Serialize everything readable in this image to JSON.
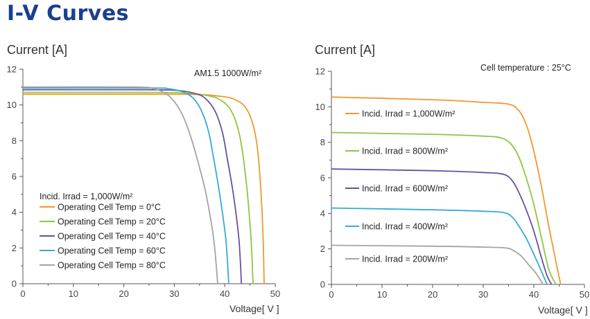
{
  "title": "I-V Curves",
  "colors": [
    "#f0982e",
    "#8cc63f",
    "#6650a0",
    "#37a9d6",
    "#a3a3a3"
  ],
  "chart_data": [
    {
      "type": "line",
      "ylabel": "Current [A]",
      "xlabel": "Voltage[ V ]",
      "annotation": "AM1.5  1000W/m²",
      "legend_title": "Incid. Irrad = 1,000W/m²",
      "legend_position": "lower-left",
      "xlim": [
        0,
        50
      ],
      "ylim": [
        0,
        12
      ],
      "xticks": [
        0,
        10,
        20,
        30,
        40,
        50
      ],
      "yticks": [
        0,
        2,
        4,
        6,
        8,
        10,
        12
      ],
      "grid": false,
      "series": [
        {
          "name": "Operating Cell Temp = 0°C",
          "color": "#f0982e",
          "points": [
            [
              0,
              10.6
            ],
            [
              25,
              10.6
            ],
            [
              35,
              10.58
            ],
            [
              40,
              10.45
            ],
            [
              42,
              10.3
            ],
            [
              44,
              9.9
            ],
            [
              45.5,
              9.0
            ],
            [
              46.5,
              7.5
            ],
            [
              47.2,
              5.0
            ],
            [
              47.6,
              2.5
            ],
            [
              47.8,
              0
            ]
          ]
        },
        {
          "name": "Operating Cell Temp = 20°C",
          "color": "#8cc63f",
          "points": [
            [
              0,
              10.7
            ],
            [
              25,
              10.7
            ],
            [
              33,
              10.65
            ],
            [
              37,
              10.5
            ],
            [
              39,
              10.3
            ],
            [
              41,
              9.8
            ],
            [
              42.5,
              8.8
            ],
            [
              43.5,
              7.4
            ],
            [
              44.5,
              5.0
            ],
            [
              45.2,
              2.5
            ],
            [
              45.6,
              0
            ]
          ]
        },
        {
          "name": "Operating Cell Temp = 40°C",
          "color": "#6650a0",
          "points": [
            [
              0,
              10.85
            ],
            [
              25,
              10.85
            ],
            [
              31,
              10.8
            ],
            [
              34,
              10.65
            ],
            [
              36,
              10.4
            ],
            [
              38,
              9.7
            ],
            [
              39.5,
              8.5
            ],
            [
              40.5,
              7.0
            ],
            [
              41.7,
              5.0
            ],
            [
              42.8,
              2.5
            ],
            [
              43.3,
              0
            ]
          ]
        },
        {
          "name": "Operating Cell Temp = 60°C",
          "color": "#37a9d6",
          "points": [
            [
              0,
              10.95
            ],
            [
              25,
              10.95
            ],
            [
              29,
              10.9
            ],
            [
              32,
              10.7
            ],
            [
              34,
              10.3
            ],
            [
              35.5,
              9.6
            ],
            [
              36.8,
              8.5
            ],
            [
              37.8,
              7.0
            ],
            [
              39,
              5.0
            ],
            [
              40.2,
              2.5
            ],
            [
              40.8,
              0
            ]
          ]
        },
        {
          "name": "Operating Cell Temp = 80°C",
          "color": "#a3a3a3",
          "points": [
            [
              0,
              11.0
            ],
            [
              22,
              11.0
            ],
            [
              26,
              10.9
            ],
            [
              28.5,
              10.6
            ],
            [
              30.5,
              10.0
            ],
            [
              32,
              9.2
            ],
            [
              33.5,
              8.0
            ],
            [
              35,
              6.5
            ],
            [
              36.3,
              5.0
            ],
            [
              37.8,
              2.5
            ],
            [
              38.6,
              0
            ]
          ]
        }
      ]
    },
    {
      "type": "line",
      "ylabel": "Current [A]",
      "xlabel": "Voltage[ V ]",
      "annotation": "Cell temperature : 25°C",
      "legend_position": "left",
      "xlim": [
        0,
        50
      ],
      "ylim": [
        0,
        12
      ],
      "xticks": [
        0,
        10,
        20,
        30,
        40,
        50
      ],
      "yticks": [
        0,
        2,
        4,
        6,
        8,
        10,
        12
      ],
      "grid": false,
      "series": [
        {
          "name": "Incid. Irrad = 1,000W/m²",
          "color": "#f0982e",
          "points": [
            [
              0,
              10.55
            ],
            [
              20,
              10.4
            ],
            [
              30,
              10.25
            ],
            [
              35,
              10.15
            ],
            [
              37,
              9.8
            ],
            [
              38.5,
              9.0
            ],
            [
              40,
              7.5
            ],
            [
              41.5,
              5.5
            ],
            [
              42.8,
              3.5
            ],
            [
              44.2,
              1.5
            ],
            [
              45.3,
              0
            ]
          ]
        },
        {
          "name": "Incid. Irrad = 800W/m²",
          "color": "#8cc63f",
          "points": [
            [
              0,
              8.55
            ],
            [
              20,
              8.45
            ],
            [
              30,
              8.35
            ],
            [
              33.5,
              8.25
            ],
            [
              35.5,
              7.9
            ],
            [
              37,
              7.2
            ],
            [
              38.5,
              6.0
            ],
            [
              40,
              4.5
            ],
            [
              41.6,
              2.5
            ],
            [
              43,
              0.8
            ],
            [
              44.4,
              0
            ]
          ]
        },
        {
          "name": "Incid. Irrad = 600W/m²",
          "color": "#6650a0",
          "points": [
            [
              0,
              6.5
            ],
            [
              20,
              6.4
            ],
            [
              30,
              6.3
            ],
            [
              34,
              6.2
            ],
            [
              35.7,
              5.85
            ],
            [
              37,
              5.2
            ],
            [
              38.5,
              4.2
            ],
            [
              40,
              3.0
            ],
            [
              41.4,
              1.6
            ],
            [
              42.6,
              0.5
            ],
            [
              43.5,
              0
            ]
          ]
        },
        {
          "name": "Incid. Irrad = 400W/m²",
          "color": "#37a9d6",
          "points": [
            [
              0,
              4.3
            ],
            [
              20,
              4.2
            ],
            [
              30,
              4.12
            ],
            [
              34,
              4.05
            ],
            [
              35.7,
              3.8
            ],
            [
              37,
              3.3
            ],
            [
              38.5,
              2.6
            ],
            [
              40,
              1.7
            ],
            [
              41.4,
              0.8
            ],
            [
              42.6,
              0
            ]
          ]
        },
        {
          "name": "Incid. Irrad = 200W/m²",
          "color": "#a3a3a3",
          "points": [
            [
              0,
              2.2
            ],
            [
              20,
              2.15
            ],
            [
              30,
              2.1
            ],
            [
              34.5,
              2.05
            ],
            [
              36,
              1.9
            ],
            [
              37.5,
              1.6
            ],
            [
              39,
              1.1
            ],
            [
              40.5,
              0.6
            ],
            [
              41.8,
              0
            ]
          ]
        }
      ]
    }
  ]
}
